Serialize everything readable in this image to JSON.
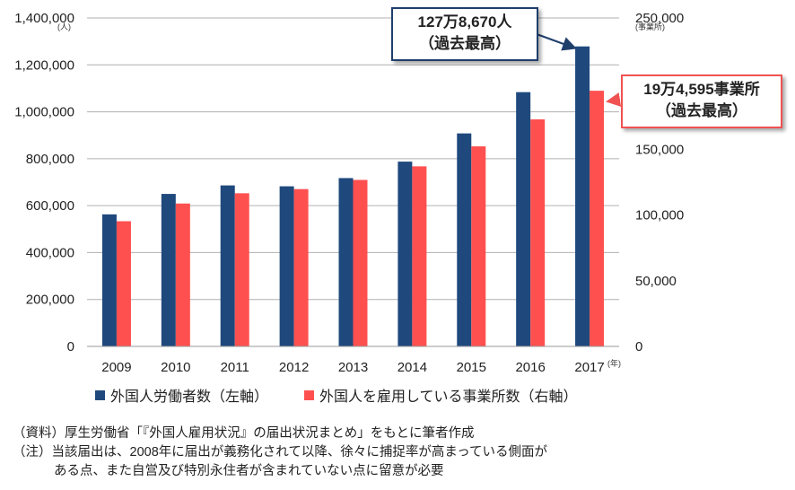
{
  "chart_data": {
    "type": "bar",
    "categories": [
      "2009",
      "2010",
      "2011",
      "2012",
      "2013",
      "2014",
      "2015",
      "2016",
      "2017"
    ],
    "x_unit": "(年)",
    "series": [
      {
        "name": "外国人労働者数（左軸）",
        "axis": "left",
        "color": "#1f497d",
        "values": [
          562818,
          649982,
          686246,
          682450,
          717504,
          787627,
          907896,
          1083769,
          1278670
        ]
      },
      {
        "name": "外国人を雇用している事業所数（右軸）",
        "axis": "right",
        "color": "#ff5050",
        "values": [
          95294,
          108760,
          116561,
          119731,
          126729,
          137053,
          152261,
          172798,
          194595
        ]
      }
    ],
    "y_left": {
      "min": 0,
      "max": 1400000,
      "unit": "(人)",
      "ticks": [
        "0",
        "200,000",
        "400,000",
        "600,000",
        "800,000",
        "1,000,000",
        "1,200,000",
        "1,400,000"
      ]
    },
    "y_right": {
      "min": 0,
      "max": 250000,
      "unit": "(事業所)",
      "ticks": [
        "0",
        "50,000",
        "100,000",
        "150,000",
        "200,000",
        "250,000"
      ]
    },
    "grid": true,
    "legend_position": "bottom-left"
  },
  "callouts": {
    "workers": {
      "line1": "127万8,670人",
      "line2": "（過去最高）"
    },
    "establishments": {
      "line1": "19万4,595事業所",
      "line2": "（過去最高）"
    }
  },
  "legend": {
    "workers_label": "外国人労働者数（左軸）",
    "establishments_label": "外国人を雇用している事業所数（右軸）"
  },
  "notes": {
    "source": "（資料）厚生労働省「『外国人雇用状況』の届出状況まとめ」をもとに筆者作成",
    "note_line1": "（注）当該届出は、2008年に届出が義務化されて以降、徐々に捕捉率が高まっている側面が",
    "note_line2": "ある点、また自営及び特別永住者が含まれていない点に留意が必要"
  }
}
